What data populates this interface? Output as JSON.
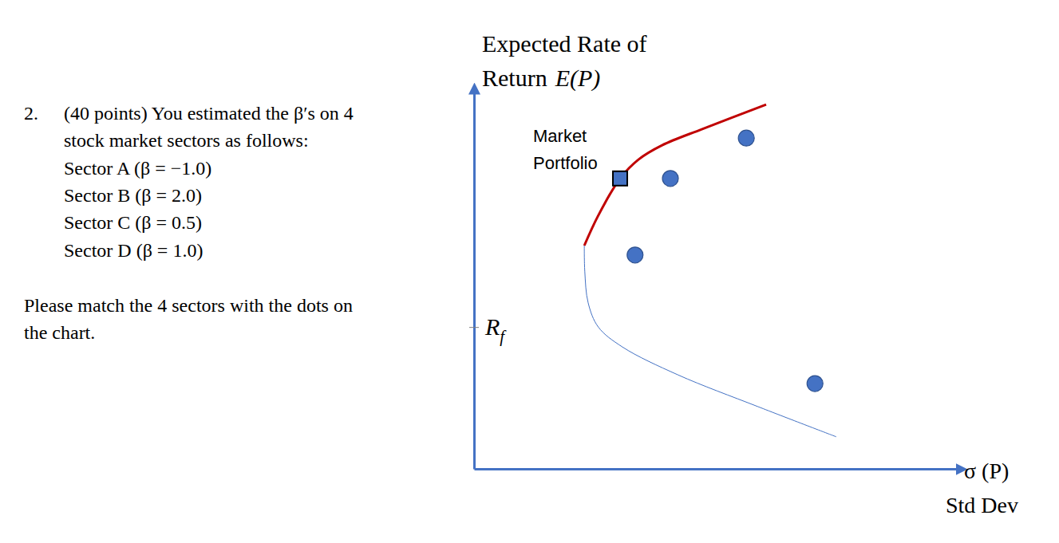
{
  "question": {
    "number": "2.",
    "lines": [
      "(40 points) You estimated the β′s on 4",
      "stock market sectors as follows:",
      "Sector A (β = −1.0)",
      "Sector B (β = 2.0)",
      "Sector C (β = 0.5)",
      "Sector D (β = 1.0)"
    ],
    "instruction": [
      "Please match the 4 sectors with the dots on",
      "the chart."
    ]
  },
  "chart_data": {
    "type": "scatter",
    "y_label": {
      "lines": [
        "Expected Rate of",
        "Return"
      ],
      "symbol": "E(P)"
    },
    "x_label": {
      "symbol": "σ (P)",
      "text": "Std Dev"
    },
    "xlim": [
      0,
      100
    ],
    "ylim": [
      0,
      100
    ],
    "xticks": [],
    "yticks": [
      {
        "value": 37.6,
        "label": "R",
        "subscript": "f"
      }
    ],
    "tick_labels": "y",
    "grid": false,
    "annotations": [
      {
        "text": [
          "Market",
          "Portfolio"
        ],
        "x": 30.2,
        "y": 77.0
      }
    ],
    "series": [
      {
        "type": "line",
        "color": "#c00000",
        "line_style": "solid",
        "x": [
          22.8,
          25.7,
          30.2,
          34.0,
          38.9,
          47.2,
          60.4
        ],
        "values": [
          59.2,
          67.2,
          77.0,
          82.0,
          85.8,
          90.1,
          96.6
        ]
      },
      {
        "type": "line",
        "color": "#4472c4",
        "line_style": "solid",
        "x": [
          22.8,
          22.9,
          23.6,
          25.7,
          30.7,
          42.2,
          58.7,
          74.9
        ],
        "values": [
          59.2,
          52.4,
          44.0,
          37.6,
          32.3,
          24.9,
          16.5,
          8.5
        ]
      },
      {
        "type": "scatter",
        "color": "#4472c4",
        "marker": "circle",
        "x": [
          56.3,
          40.6,
          33.3,
          70.5
        ],
        "values": [
          87.7,
          77.0,
          56.7,
          22.6
        ]
      },
      {
        "type": "scatter",
        "color": "#4472c4",
        "marker": "square",
        "x": [
          30.2
        ],
        "values": [
          77.0
        ]
      }
    ]
  }
}
